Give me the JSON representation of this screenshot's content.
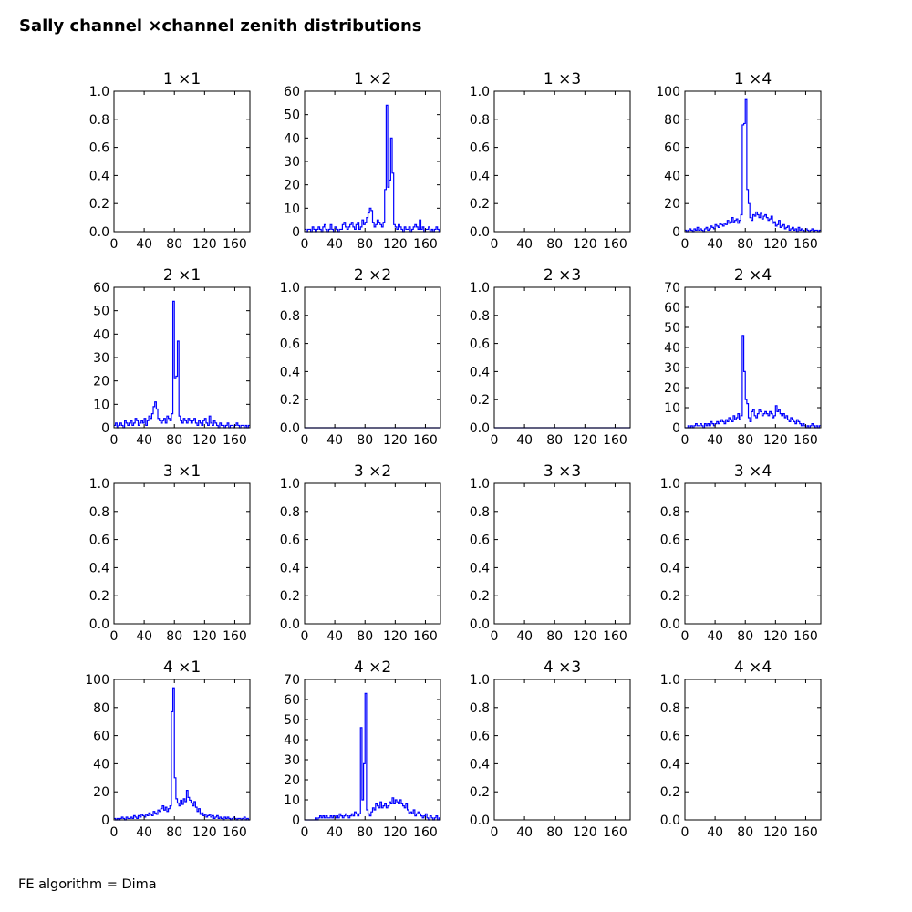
{
  "figure": {
    "title": "Sally channel ×channel zenith distributions",
    "footnote": "FE algorithm = Dima",
    "series_color": "#0000ff"
  },
  "chart_data": [
    {
      "type": "line",
      "title": "1 ×1",
      "xlim": [
        0,
        180
      ],
      "ylim": [
        0,
        1
      ],
      "xticks": [
        "0",
        "40",
        "80",
        "120",
        "160"
      ],
      "yticks": [
        "0.0",
        "0.2",
        "0.4",
        "0.6",
        "0.8",
        "1.0"
      ],
      "x": [],
      "values": []
    },
    {
      "type": "line",
      "title": "1 ×2",
      "xlim": [
        0,
        180
      ],
      "ylim": [
        0,
        60
      ],
      "xticks": [
        "0",
        "40",
        "80",
        "120",
        "160"
      ],
      "yticks": [
        "0",
        "10",
        "20",
        "30",
        "40",
        "50",
        "60"
      ],
      "x": [
        0,
        2,
        4,
        6,
        8,
        10,
        12,
        14,
        16,
        18,
        20,
        22,
        24,
        26,
        28,
        30,
        32,
        34,
        36,
        38,
        40,
        42,
        44,
        46,
        48,
        50,
        52,
        54,
        56,
        58,
        60,
        62,
        64,
        66,
        68,
        70,
        72,
        74,
        76,
        78,
        80,
        82,
        84,
        86,
        88,
        90,
        92,
        94,
        96,
        98,
        100,
        102,
        104,
        106,
        108,
        110,
        112,
        114,
        116,
        118,
        120,
        122,
        124,
        126,
        128,
        130,
        132,
        134,
        136,
        138,
        140,
        142,
        144,
        146,
        148,
        150,
        152,
        154,
        156,
        158,
        160,
        162,
        164,
        166,
        168,
        170,
        172,
        174,
        176,
        178
      ],
      "values": [
        1,
        0,
        1,
        1,
        0,
        2,
        1,
        0,
        1,
        2,
        1,
        0,
        2,
        3,
        1,
        0,
        1,
        3,
        1,
        0,
        2,
        1,
        0,
        1,
        1,
        3,
        4,
        2,
        1,
        2,
        3,
        4,
        2,
        1,
        3,
        4,
        1,
        2,
        5,
        3,
        4,
        6,
        8,
        10,
        9,
        4,
        2,
        3,
        5,
        4,
        3,
        2,
        4,
        18,
        54,
        19,
        22,
        40,
        25,
        3,
        2,
        1,
        3,
        2,
        1,
        0,
        2,
        1,
        1,
        2,
        0,
        1,
        2,
        3,
        2,
        1,
        5,
        1,
        2,
        0,
        1,
        1,
        2,
        0,
        1,
        0,
        1,
        2,
        1,
        0
      ]
    },
    {
      "type": "line",
      "title": "1 ×3",
      "xlim": [
        0,
        180
      ],
      "ylim": [
        0,
        1
      ],
      "xticks": [
        "0",
        "40",
        "80",
        "120",
        "160"
      ],
      "yticks": [
        "0.0",
        "0.2",
        "0.4",
        "0.6",
        "0.8",
        "1.0"
      ],
      "x": [],
      "values": []
    },
    {
      "type": "line",
      "title": "1 ×4",
      "xlim": [
        0,
        180
      ],
      "ylim": [
        0,
        100
      ],
      "xticks": [
        "0",
        "40",
        "80",
        "120",
        "160"
      ],
      "yticks": [
        "0",
        "20",
        "40",
        "60",
        "80",
        "100"
      ],
      "x": [
        0,
        2,
        4,
        6,
        8,
        10,
        12,
        14,
        16,
        18,
        20,
        22,
        24,
        26,
        28,
        30,
        32,
        34,
        36,
        38,
        40,
        42,
        44,
        46,
        48,
        50,
        52,
        54,
        56,
        58,
        60,
        62,
        64,
        66,
        68,
        70,
        72,
        74,
        76,
        78,
        80,
        82,
        84,
        86,
        88,
        90,
        92,
        94,
        96,
        98,
        100,
        102,
        104,
        106,
        108,
        110,
        112,
        114,
        116,
        118,
        120,
        122,
        124,
        126,
        128,
        130,
        132,
        134,
        136,
        138,
        140,
        142,
        144,
        146,
        148,
        150,
        152,
        154,
        156,
        158,
        160,
        162,
        164,
        166,
        168,
        170,
        172,
        174,
        176,
        178
      ],
      "values": [
        1,
        0,
        1,
        2,
        1,
        0,
        2,
        1,
        3,
        1,
        2,
        1,
        0,
        2,
        3,
        1,
        2,
        4,
        3,
        2,
        5,
        4,
        3,
        6,
        5,
        4,
        6,
        5,
        8,
        6,
        7,
        10,
        7,
        8,
        9,
        6,
        8,
        12,
        76,
        77,
        94,
        30,
        20,
        10,
        8,
        12,
        11,
        14,
        12,
        10,
        13,
        9,
        11,
        12,
        10,
        8,
        9,
        11,
        6,
        7,
        4,
        5,
        8,
        3,
        4,
        5,
        2,
        3,
        4,
        1,
        2,
        3,
        1,
        2,
        0,
        3,
        1,
        2,
        1,
        0,
        2,
        1,
        0,
        1,
        2,
        0,
        1,
        1,
        0,
        1
      ]
    },
    {
      "type": "line",
      "title": "2 ×1",
      "xlim": [
        0,
        180
      ],
      "ylim": [
        0,
        60
      ],
      "xticks": [
        "0",
        "40",
        "80",
        "120",
        "160"
      ],
      "yticks": [
        "0",
        "10",
        "20",
        "30",
        "40",
        "50",
        "60"
      ],
      "x": [
        0,
        2,
        4,
        6,
        8,
        10,
        12,
        14,
        16,
        18,
        20,
        22,
        24,
        26,
        28,
        30,
        32,
        34,
        36,
        38,
        40,
        42,
        44,
        46,
        48,
        50,
        52,
        54,
        56,
        58,
        60,
        62,
        64,
        66,
        68,
        70,
        72,
        74,
        76,
        78,
        80,
        82,
        84,
        86,
        88,
        90,
        92,
        94,
        96,
        98,
        100,
        102,
        104,
        106,
        108,
        110,
        112,
        114,
        116,
        118,
        120,
        122,
        124,
        126,
        128,
        130,
        132,
        134,
        136,
        138,
        140,
        142,
        144,
        146,
        148,
        150,
        152,
        154,
        156,
        158,
        160,
        162,
        164,
        166,
        168,
        170,
        172,
        174,
        176,
        178
      ],
      "values": [
        1,
        2,
        0,
        1,
        2,
        1,
        0,
        3,
        2,
        1,
        2,
        3,
        1,
        2,
        4,
        3,
        1,
        2,
        3,
        2,
        4,
        1,
        3,
        5,
        4,
        6,
        9,
        11,
        8,
        4,
        3,
        2,
        3,
        4,
        2,
        5,
        4,
        3,
        6,
        54,
        21,
        22,
        37,
        5,
        3,
        2,
        4,
        3,
        2,
        4,
        3,
        2,
        3,
        4,
        2,
        1,
        3,
        2,
        1,
        3,
        4,
        2,
        1,
        5,
        2,
        1,
        3,
        2,
        1,
        0,
        2,
        1,
        1,
        0,
        1,
        2,
        0,
        1,
        1,
        0,
        1,
        2,
        1,
        0,
        1,
        1,
        0,
        1,
        0,
        1
      ]
    },
    {
      "type": "line",
      "title": "2 ×2",
      "xlim": [
        0,
        180
      ],
      "ylim": [
        0,
        1
      ],
      "xticks": [
        "0",
        "40",
        "80",
        "120",
        "160"
      ],
      "yticks": [
        "0.0",
        "0.2",
        "0.4",
        "0.6",
        "0.8",
        "1.0"
      ],
      "x": [
        0,
        180
      ],
      "values": [
        0,
        0
      ]
    },
    {
      "type": "line",
      "title": "2 ×3",
      "xlim": [
        0,
        180
      ],
      "ylim": [
        0,
        1
      ],
      "xticks": [
        "0",
        "40",
        "80",
        "120",
        "160"
      ],
      "yticks": [
        "0.0",
        "0.2",
        "0.4",
        "0.6",
        "0.8",
        "1.0"
      ],
      "x": [
        0,
        180
      ],
      "values": [
        0,
        0
      ]
    },
    {
      "type": "line",
      "title": "2 ×4",
      "xlim": [
        0,
        180
      ],
      "ylim": [
        0,
        70
      ],
      "xticks": [
        "0",
        "40",
        "80",
        "120",
        "160"
      ],
      "yticks": [
        "0",
        "10",
        "20",
        "30",
        "40",
        "50",
        "60",
        "70"
      ],
      "x": [
        0,
        2,
        4,
        6,
        8,
        10,
        12,
        14,
        16,
        18,
        20,
        22,
        24,
        26,
        28,
        30,
        32,
        34,
        36,
        38,
        40,
        42,
        44,
        46,
        48,
        50,
        52,
        54,
        56,
        58,
        60,
        62,
        64,
        66,
        68,
        70,
        72,
        74,
        76,
        78,
        80,
        82,
        84,
        86,
        88,
        90,
        92,
        94,
        96,
        98,
        100,
        102,
        104,
        106,
        108,
        110,
        112,
        114,
        116,
        118,
        120,
        122,
        124,
        126,
        128,
        130,
        132,
        134,
        136,
        138,
        140,
        142,
        144,
        146,
        148,
        150,
        152,
        154,
        156,
        158,
        160,
        162,
        164,
        166,
        168,
        170,
        172,
        174,
        176,
        178
      ],
      "values": [
        0,
        0,
        1,
        0,
        1,
        0,
        1,
        2,
        1,
        1,
        2,
        1,
        0,
        2,
        1,
        2,
        1,
        3,
        2,
        1,
        2,
        3,
        2,
        3,
        4,
        3,
        2,
        4,
        3,
        5,
        4,
        3,
        6,
        4,
        5,
        7,
        4,
        6,
        46,
        28,
        14,
        12,
        5,
        3,
        8,
        9,
        6,
        5,
        7,
        9,
        8,
        6,
        7,
        8,
        7,
        6,
        8,
        7,
        5,
        6,
        11,
        8,
        9,
        7,
        6,
        7,
        5,
        6,
        4,
        3,
        5,
        4,
        3,
        2,
        4,
        3,
        2,
        1,
        2,
        1,
        0,
        1,
        0,
        1,
        2,
        1,
        0,
        1,
        0,
        1
      ]
    },
    {
      "type": "line",
      "title": "3 ×1",
      "xlim": [
        0,
        180
      ],
      "ylim": [
        0,
        1
      ],
      "xticks": [
        "0",
        "40",
        "80",
        "120",
        "160"
      ],
      "yticks": [
        "0.0",
        "0.2",
        "0.4",
        "0.6",
        "0.8",
        "1.0"
      ],
      "x": [],
      "values": []
    },
    {
      "type": "line",
      "title": "3 ×2",
      "xlim": [
        0,
        180
      ],
      "ylim": [
        0,
        1
      ],
      "xticks": [
        "0",
        "40",
        "80",
        "120",
        "160"
      ],
      "yticks": [
        "0.0",
        "0.2",
        "0.4",
        "0.6",
        "0.8",
        "1.0"
      ],
      "x": [],
      "values": []
    },
    {
      "type": "line",
      "title": "3 ×3",
      "xlim": [
        0,
        180
      ],
      "ylim": [
        0,
        1
      ],
      "xticks": [
        "0",
        "40",
        "80",
        "120",
        "160"
      ],
      "yticks": [
        "0.0",
        "0.2",
        "0.4",
        "0.6",
        "0.8",
        "1.0"
      ],
      "x": [],
      "values": []
    },
    {
      "type": "line",
      "title": "3 ×4",
      "xlim": [
        0,
        180
      ],
      "ylim": [
        0,
        1
      ],
      "xticks": [
        "0",
        "40",
        "80",
        "120",
        "160"
      ],
      "yticks": [
        "0.0",
        "0.2",
        "0.4",
        "0.6",
        "0.8",
        "1.0"
      ],
      "x": [],
      "values": []
    },
    {
      "type": "line",
      "title": "4 ×1",
      "xlim": [
        0,
        180
      ],
      "ylim": [
        0,
        100
      ],
      "xticks": [
        "0",
        "40",
        "80",
        "120",
        "160"
      ],
      "yticks": [
        "0",
        "20",
        "40",
        "60",
        "80",
        "100"
      ],
      "x": [
        0,
        2,
        4,
        6,
        8,
        10,
        12,
        14,
        16,
        18,
        20,
        22,
        24,
        26,
        28,
        30,
        32,
        34,
        36,
        38,
        40,
        42,
        44,
        46,
        48,
        50,
        52,
        54,
        56,
        58,
        60,
        62,
        64,
        66,
        68,
        70,
        72,
        74,
        76,
        78,
        80,
        82,
        84,
        86,
        88,
        90,
        92,
        94,
        96,
        98,
        100,
        102,
        104,
        106,
        108,
        110,
        112,
        114,
        116,
        118,
        120,
        122,
        124,
        126,
        128,
        130,
        132,
        134,
        136,
        138,
        140,
        142,
        144,
        146,
        148,
        150,
        152,
        154,
        156,
        158,
        160,
        162,
        164,
        166,
        168,
        170,
        172,
        174,
        176,
        178
      ],
      "values": [
        1,
        0,
        1,
        0,
        1,
        2,
        1,
        0,
        2,
        1,
        1,
        2,
        1,
        3,
        2,
        1,
        3,
        2,
        4,
        3,
        2,
        4,
        3,
        5,
        4,
        3,
        6,
        5,
        4,
        7,
        6,
        8,
        10,
        7,
        9,
        6,
        8,
        10,
        77,
        94,
        30,
        15,
        12,
        10,
        14,
        11,
        15,
        13,
        21,
        16,
        14,
        12,
        10,
        13,
        9,
        6,
        8,
        4,
        5,
        3,
        4,
        2,
        3,
        4,
        2,
        3,
        1,
        2,
        3,
        1,
        2,
        1,
        0,
        2,
        1,
        2,
        1,
        0,
        1,
        2,
        1,
        0,
        1,
        1,
        0,
        1,
        2,
        0,
        1,
        0
      ]
    },
    {
      "type": "line",
      "title": "4 ×2",
      "xlim": [
        0,
        180
      ],
      "ylim": [
        0,
        70
      ],
      "xticks": [
        "0",
        "40",
        "80",
        "120",
        "160"
      ],
      "yticks": [
        "0",
        "10",
        "20",
        "30",
        "40",
        "50",
        "60",
        "70"
      ],
      "x": [
        0,
        2,
        4,
        6,
        8,
        10,
        12,
        14,
        16,
        18,
        20,
        22,
        24,
        26,
        28,
        30,
        32,
        34,
        36,
        38,
        40,
        42,
        44,
        46,
        48,
        50,
        52,
        54,
        56,
        58,
        60,
        62,
        64,
        66,
        68,
        70,
        72,
        74,
        76,
        78,
        80,
        82,
        84,
        86,
        88,
        90,
        92,
        94,
        96,
        98,
        100,
        102,
        104,
        106,
        108,
        110,
        112,
        114,
        116,
        118,
        120,
        122,
        124,
        126,
        128,
        130,
        132,
        134,
        136,
        138,
        140,
        142,
        144,
        146,
        148,
        150,
        152,
        154,
        156,
        158,
        160,
        162,
        164,
        166,
        168,
        170,
        172,
        174,
        176,
        178
      ],
      "values": [
        0,
        0,
        0,
        0,
        0,
        0,
        0,
        1,
        0,
        1,
        2,
        1,
        2,
        1,
        2,
        1,
        1,
        2,
        1,
        2,
        1,
        2,
        1,
        3,
        2,
        1,
        2,
        3,
        2,
        1,
        2,
        3,
        2,
        4,
        3,
        2,
        3,
        46,
        10,
        28,
        63,
        5,
        3,
        2,
        4,
        6,
        5,
        8,
        7,
        6,
        9,
        6,
        7,
        8,
        6,
        7,
        9,
        8,
        11,
        8,
        10,
        9,
        8,
        10,
        8,
        7,
        6,
        8,
        5,
        3,
        4,
        3,
        5,
        2,
        3,
        4,
        3,
        2,
        1,
        2,
        3,
        1,
        0,
        2,
        1,
        0,
        1,
        2,
        0,
        1
      ]
    },
    {
      "type": "line",
      "title": "4 ×3",
      "xlim": [
        0,
        180
      ],
      "ylim": [
        0,
        1
      ],
      "xticks": [
        "0",
        "40",
        "80",
        "120",
        "160"
      ],
      "yticks": [
        "0.0",
        "0.2",
        "0.4",
        "0.6",
        "0.8",
        "1.0"
      ],
      "x": [],
      "values": []
    },
    {
      "type": "line",
      "title": "4 ×4",
      "xlim": [
        0,
        180
      ],
      "ylim": [
        0,
        1
      ],
      "xticks": [
        "0",
        "40",
        "80",
        "120",
        "160"
      ],
      "yticks": [
        "0.0",
        "0.2",
        "0.4",
        "0.6",
        "0.8",
        "1.0"
      ],
      "x": [],
      "values": []
    }
  ]
}
